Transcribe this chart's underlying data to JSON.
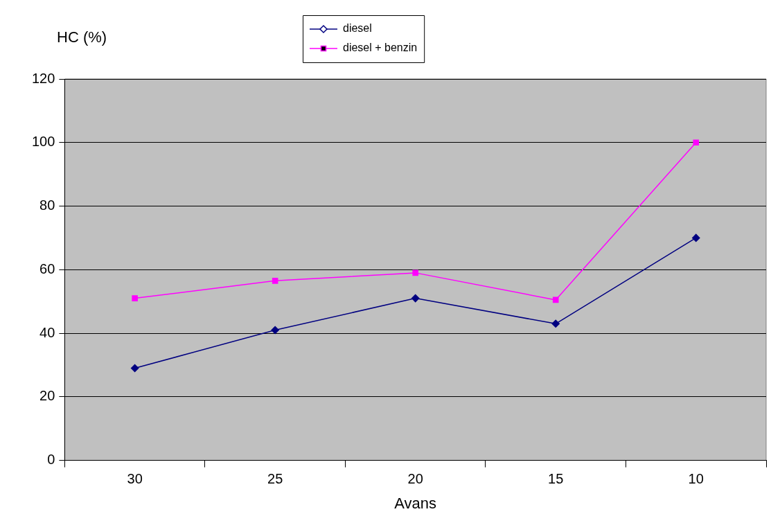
{
  "chart_data": {
    "type": "line",
    "xlabel": "Avans",
    "ylabel": "HC (%)",
    "categories": [
      "30",
      "25",
      "20",
      "15",
      "10"
    ],
    "series": [
      {
        "name": "diesel",
        "color": "#000080",
        "marker": "diamond",
        "values": [
          29,
          41,
          51,
          43,
          70
        ]
      },
      {
        "name": "diesel + benzin",
        "color": "#ff00ff",
        "marker": "square",
        "values": [
          51,
          56.5,
          59,
          50.5,
          100
        ]
      }
    ],
    "ylim": [
      0,
      120
    ],
    "yticks": [
      0,
      20,
      40,
      60,
      80,
      100,
      120
    ],
    "grid": "y",
    "legend": "top",
    "line_style": "solid"
  }
}
